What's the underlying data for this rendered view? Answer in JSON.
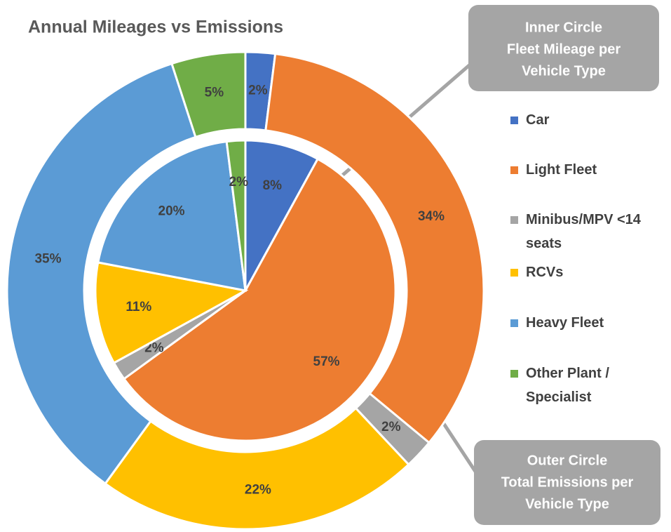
{
  "chart_data": {
    "type": "pie",
    "title": "Annual Mileages vs Emissions",
    "categories": [
      "Car",
      "Light Fleet",
      "Minibus/MPV <14 seats",
      "RCVs",
      "Heavy Fleet",
      "Other Plant / Specialist"
    ],
    "colors": [
      "#4472c4",
      "#ed7d31",
      "#a5a5a5",
      "#ffc000",
      "#5b9bd5",
      "#70ad47"
    ],
    "series": [
      {
        "values": [
          8,
          57,
          2,
          11,
          20,
          2
        ],
        "value_labels": [
          "8%",
          "57%",
          "2%",
          "11%",
          "20%",
          "2%"
        ]
      },
      {
        "values": [
          2,
          34,
          2,
          22,
          35,
          5
        ],
        "value_labels": [
          "2%",
          "34%",
          "2%",
          "22%",
          "35%",
          "5%"
        ]
      }
    ],
    "annotations": [
      [
        "Inner Circle",
        "Fleet Mileage per",
        "Vehicle Type"
      ],
      [
        "Outer Circle",
        "Total Emissions per",
        "Vehicle Type"
      ]
    ]
  }
}
